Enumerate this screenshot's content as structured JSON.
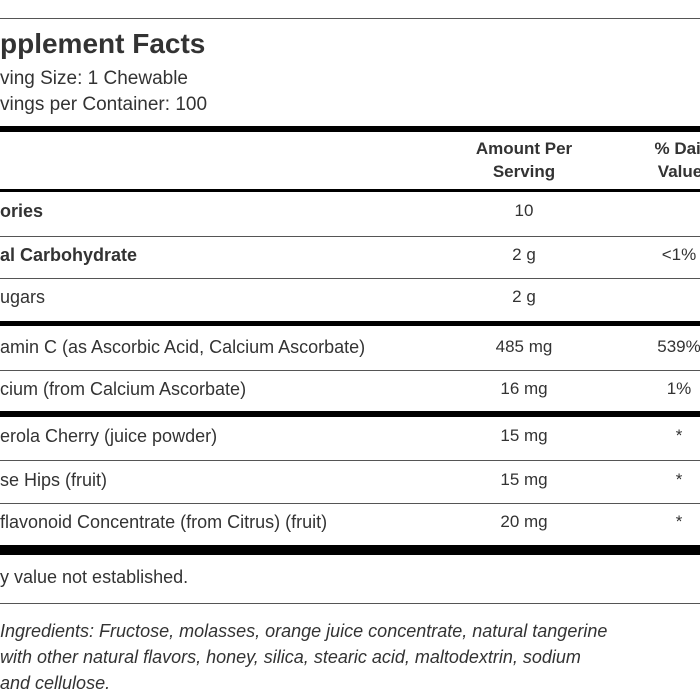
{
  "title": "pplement Facts",
  "serving_size": "ving Size: 1 Chewable",
  "servings": "vings per Container: 100",
  "header": {
    "amount": [
      "Amount Per",
      "Serving"
    ],
    "dv": [
      "% Dail",
      "Value"
    ]
  },
  "rows": [
    {
      "name": "ories",
      "amount": "10",
      "bold": true
    },
    {
      "name": "al Carbohydrate",
      "amount": "2 g",
      "dv": "<1%",
      "bold": true
    },
    {
      "name": "ugars",
      "amount": "2 g"
    },
    {
      "name": "amin C (as Ascorbic Acid, Calcium Ascorbate)",
      "amount": "485 mg",
      "dv": "539%"
    },
    {
      "name": "cium (from Calcium Ascorbate)",
      "amount": "16 mg",
      "dv": "1%"
    },
    {
      "name": "erola Cherry (juice powder)",
      "amount": "15 mg",
      "dv": "*"
    },
    {
      "name": "se Hips (fruit)",
      "amount": "15 mg",
      "dv": "*"
    },
    {
      "name": "flavonoid Concentrate (from Citrus) (fruit)",
      "amount": "20 mg",
      "dv": "*"
    }
  ],
  "footnote": "y value not established.",
  "ingredients": [
    "Ingredients: Fructose, molasses, orange juice concentrate, natural tangerine",
    "with other natural flavors, honey, silica, stearic acid, maltodextrin, sodium",
    "and cellulose."
  ]
}
